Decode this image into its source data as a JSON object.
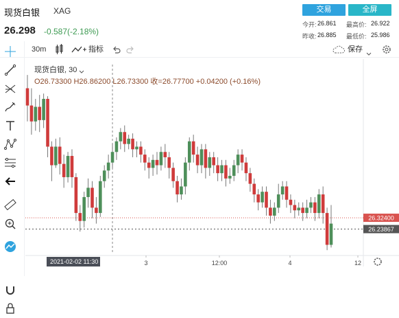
{
  "header": {
    "title": "现货白银",
    "symbol": "XAG",
    "price": "26.298",
    "change": "-0.587(-2.18%)",
    "trade_button": "交易",
    "fullscreen_button": "全屏",
    "quote": {
      "open_label": "今开:",
      "open_value": "26.861",
      "high_label": "最高价:",
      "high_value": "26.922",
      "prev_label": "昨收:",
      "prev_value": "26.885",
      "low_label": "最低价:",
      "low_value": "25.986"
    }
  },
  "toolbar": {
    "interval": "30m",
    "indicators": "指标",
    "save": "保存"
  },
  "legend": {
    "name": "现货白银",
    "interval": "30",
    "ohlc": "O26.73300 H26.86200 L26.73300 收=26.77700",
    "delta": "+0.04200 (+0.16%)"
  },
  "colors": {
    "up": "#4e8f5a",
    "down": "#cf3b3b",
    "accent": "#2fa3de",
    "price_line": "#e04a3c",
    "cursor_line": "#888888"
  },
  "icons": [
    "crosshair-icon",
    "trend-line-icon",
    "fib-icon",
    "brush-icon",
    "text-icon",
    "pattern-icon",
    "forecast-icon",
    "back-arrow-icon",
    "ruler-icon",
    "zoom-icon",
    "magnet-icon",
    "lock-icon",
    "logo-icon",
    "candle-style-icon",
    "compare-icon",
    "undo-icon",
    "redo-icon",
    "cloud-icon",
    "settings-icon"
  ],
  "chart_data": {
    "type": "candlestick",
    "ylim": [
      26.05,
      27.52
    ],
    "x_ticks": [
      "3",
      "12:00",
      "4",
      "12"
    ],
    "crosshair_date": "2021-02-02",
    "crosshair_time": "11:30",
    "price_labels": [
      {
        "value": 26.324,
        "text": "26.32400",
        "color": "#d9534f"
      },
      {
        "value": 26.23867,
        "text": "26.23867",
        "color": "#555555"
      }
    ],
    "candles": [
      [
        27.3,
        27.17,
        27.4,
        27.05
      ],
      [
        27.17,
        27.05,
        27.3,
        26.95
      ],
      [
        27.05,
        27.16,
        27.22,
        26.98
      ],
      [
        27.16,
        27.06,
        27.25,
        26.97
      ],
      [
        27.06,
        27.22,
        27.26,
        27.0
      ],
      [
        27.22,
        26.86,
        27.24,
        26.78
      ],
      [
        26.86,
        26.72,
        26.9,
        26.6
      ],
      [
        26.72,
        26.86,
        26.92,
        26.7
      ],
      [
        26.86,
        26.73,
        26.93,
        26.65
      ],
      [
        26.73,
        26.63,
        26.8,
        26.55
      ],
      [
        26.63,
        26.79,
        26.82,
        26.59
      ],
      [
        26.79,
        26.63,
        26.84,
        26.55
      ],
      [
        26.63,
        26.36,
        26.66,
        26.3
      ],
      [
        26.36,
        26.3,
        26.42,
        26.22
      ],
      [
        26.3,
        26.48,
        26.52,
        26.25
      ],
      [
        26.48,
        26.55,
        26.62,
        26.4
      ],
      [
        26.55,
        26.4,
        26.6,
        26.32
      ],
      [
        26.4,
        26.36,
        26.48,
        26.28
      ],
      [
        26.36,
        26.6,
        26.64,
        26.33
      ],
      [
        26.6,
        26.68,
        26.72,
        26.55
      ],
      [
        26.68,
        26.74,
        26.8,
        26.62
      ],
      [
        26.74,
        26.82,
        26.88,
        26.7
      ],
      [
        26.82,
        26.9,
        26.93,
        26.76
      ],
      [
        26.9,
        26.97,
        27.0,
        26.84
      ],
      [
        26.97,
        26.88,
        27.02,
        26.82
      ],
      [
        26.88,
        26.92,
        26.95,
        26.84
      ],
      [
        26.92,
        26.84,
        26.96,
        26.78
      ],
      [
        26.84,
        26.86,
        26.9,
        26.78
      ],
      [
        26.86,
        26.8,
        26.9,
        26.74
      ],
      [
        26.8,
        26.74,
        26.84,
        26.68
      ],
      [
        26.74,
        26.7,
        26.78,
        26.62
      ],
      [
        26.7,
        26.76,
        26.8,
        26.64
      ],
      [
        26.76,
        26.72,
        26.82,
        26.65
      ],
      [
        26.72,
        26.82,
        26.86,
        26.68
      ],
      [
        26.82,
        26.78,
        26.88,
        26.7
      ],
      [
        26.78,
        26.7,
        26.82,
        26.62
      ],
      [
        26.7,
        26.6,
        26.74,
        26.55
      ],
      [
        26.6,
        26.5,
        26.64,
        26.44
      ],
      [
        26.5,
        26.56,
        26.62,
        26.46
      ],
      [
        26.56,
        26.74,
        26.78,
        26.5
      ],
      [
        26.74,
        26.9,
        26.93,
        26.68
      ],
      [
        26.9,
        26.8,
        26.95,
        26.74
      ],
      [
        26.8,
        26.72,
        26.86,
        26.66
      ],
      [
        26.72,
        26.84,
        26.88,
        26.66
      ],
      [
        26.84,
        26.7,
        26.88,
        26.62
      ],
      [
        26.7,
        26.78,
        26.82,
        26.64
      ],
      [
        26.78,
        26.72,
        26.82,
        26.66
      ],
      [
        26.72,
        26.66,
        26.78,
        26.6
      ],
      [
        26.66,
        26.72,
        26.76,
        26.6
      ],
      [
        26.72,
        26.62,
        26.76,
        26.56
      ],
      [
        26.62,
        26.64,
        26.7,
        26.58
      ],
      [
        26.64,
        26.72,
        26.76,
        26.6
      ],
      [
        26.72,
        26.8,
        26.84,
        26.66
      ],
      [
        26.8,
        26.74,
        26.84,
        26.68
      ],
      [
        26.74,
        26.66,
        26.78,
        26.6
      ],
      [
        26.66,
        26.58,
        26.7,
        26.52
      ],
      [
        26.58,
        26.5,
        26.62,
        26.44
      ],
      [
        26.5,
        26.44,
        26.54,
        26.38
      ],
      [
        26.44,
        26.52,
        26.56,
        26.4
      ],
      [
        26.52,
        26.4,
        26.56,
        26.34
      ],
      [
        26.4,
        26.34,
        26.46,
        26.28
      ],
      [
        26.34,
        26.4,
        26.44,
        26.3
      ],
      [
        26.4,
        26.5,
        26.58,
        26.36
      ],
      [
        26.5,
        26.56,
        26.6,
        26.46
      ],
      [
        26.56,
        26.46,
        26.6,
        26.4
      ],
      [
        26.46,
        26.42,
        26.5,
        26.36
      ],
      [
        26.42,
        26.38,
        26.46,
        26.32
      ],
      [
        26.38,
        26.4,
        26.44,
        26.34
      ],
      [
        26.4,
        26.36,
        26.44,
        26.3
      ],
      [
        26.36,
        26.4,
        26.46,
        26.32
      ],
      [
        26.4,
        26.44,
        26.48,
        26.36
      ],
      [
        26.44,
        26.36,
        26.48,
        26.3
      ],
      [
        26.36,
        26.5,
        26.54,
        26.32
      ],
      [
        26.5,
        26.36,
        26.56,
        26.28
      ],
      [
        26.36,
        26.12,
        26.4,
        26.08
      ],
      [
        26.12,
        26.28,
        26.42,
        26.1
      ]
    ]
  }
}
